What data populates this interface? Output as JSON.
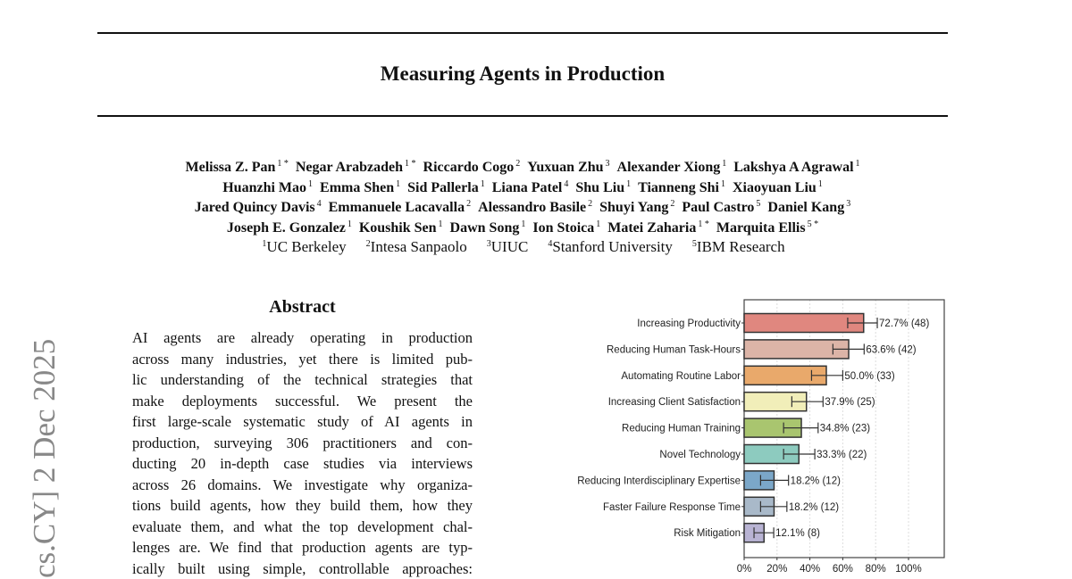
{
  "stamp": "cs.CY]  2 Dec 2025",
  "title": "Measuring Agents in Production",
  "authors": [
    [
      {
        "name": "Melissa Z. Pan",
        "aff": "1 *"
      },
      {
        "name": "Negar Arabzadeh",
        "aff": "1 *"
      },
      {
        "name": "Riccardo Cogo",
        "aff": "2"
      },
      {
        "name": "Yuxuan Zhu",
        "aff": "3"
      },
      {
        "name": "Alexander Xiong",
        "aff": "1"
      },
      {
        "name": "Lakshya A Agrawal",
        "aff": "1"
      }
    ],
    [
      {
        "name": "Huanzhi Mao",
        "aff": "1"
      },
      {
        "name": "Emma Shen",
        "aff": "1"
      },
      {
        "name": "Sid Pallerla",
        "aff": "1"
      },
      {
        "name": "Liana Patel",
        "aff": "4"
      },
      {
        "name": "Shu Liu",
        "aff": "1"
      },
      {
        "name": "Tianneng Shi",
        "aff": "1"
      },
      {
        "name": "Xiaoyuan Liu",
        "aff": "1"
      }
    ],
    [
      {
        "name": "Jared Quincy Davis",
        "aff": "4"
      },
      {
        "name": "Emmanuele Lacavalla",
        "aff": "2"
      },
      {
        "name": "Alessandro Basile",
        "aff": "2"
      },
      {
        "name": "Shuyi Yang",
        "aff": "2"
      },
      {
        "name": "Paul Castro",
        "aff": "5"
      },
      {
        "name": "Daniel Kang",
        "aff": "3"
      }
    ],
    [
      {
        "name": "Joseph E. Gonzalez",
        "aff": "1"
      },
      {
        "name": "Koushik Sen",
        "aff": "1"
      },
      {
        "name": "Dawn Song",
        "aff": "1"
      },
      {
        "name": "Ion Stoica",
        "aff": "1"
      },
      {
        "name": "Matei Zaharia",
        "aff": "1 *"
      },
      {
        "name": "Marquita Ellis",
        "aff": "5 *"
      }
    ]
  ],
  "affiliations": [
    {
      "num": "1",
      "name": "UC Berkeley"
    },
    {
      "num": "2",
      "name": "Intesa Sanpaolo"
    },
    {
      "num": "3",
      "name": "UIUC"
    },
    {
      "num": "4",
      "name": "Stanford University"
    },
    {
      "num": "5",
      "name": "IBM Research"
    }
  ],
  "abstract": {
    "title": "Abstract",
    "lines": [
      "AI agents are already operating in production",
      "across many industries, yet there is limited pub-",
      "lic understanding of the technical strategies that",
      "make deployments successful.  We present the",
      "first large-scale systematic study of AI agents in",
      "production, surveying 306 practitioners and con-",
      "ducting 20 in-depth case studies via interviews",
      "across 26 domains. We investigate why organiza-",
      "tions build agents, how they build them, how they",
      "evaluate them, and what the top development chal-",
      "lenges are. We find that production agents are typ-",
      "ically built using simple, controllable approaches:"
    ]
  },
  "chart_data": {
    "type": "bar",
    "orientation": "horizontal",
    "categories": [
      "Increasing Productivity",
      "Reducing Human Task-Hours",
      "Automating Routine Labor",
      "Increasing Client Satisfaction",
      "Reducing Human Training",
      "Novel Technology",
      "Reducing Interdisciplinary Expertise",
      "Faster Failure Response Time",
      "Risk Mitigation"
    ],
    "values": [
      72.7,
      63.6,
      50.0,
      37.9,
      34.8,
      33.3,
      18.2,
      18.2,
      12.1
    ],
    "counts": [
      48,
      42,
      33,
      25,
      23,
      22,
      12,
      12,
      8
    ],
    "labels": [
      "72.7% (48)",
      "63.6% (42)",
      "50.0% (33)",
      "37.9% (25)",
      "34.8% (23)",
      "33.3% (22)",
      "18.2% (12)",
      "18.2% (12)",
      "12.1% (8)"
    ],
    "error_low": [
      63,
      54,
      41,
      29,
      24,
      24,
      10,
      10,
      6
    ],
    "error_high": [
      81,
      73,
      60,
      48,
      45,
      43,
      27,
      26,
      18
    ],
    "colors": [
      "#e0877f",
      "#dcb4a7",
      "#e9a96b",
      "#f1eeb9",
      "#a9c56f",
      "#8dcbbf",
      "#7ba7c9",
      "#a9b9c9",
      "#b8b3d3"
    ],
    "xticks": [
      "0%",
      "20%",
      "40%",
      "60%",
      "80%",
      "100%"
    ],
    "xlim": [
      0,
      120
    ],
    "grid": "vertical dotted"
  }
}
